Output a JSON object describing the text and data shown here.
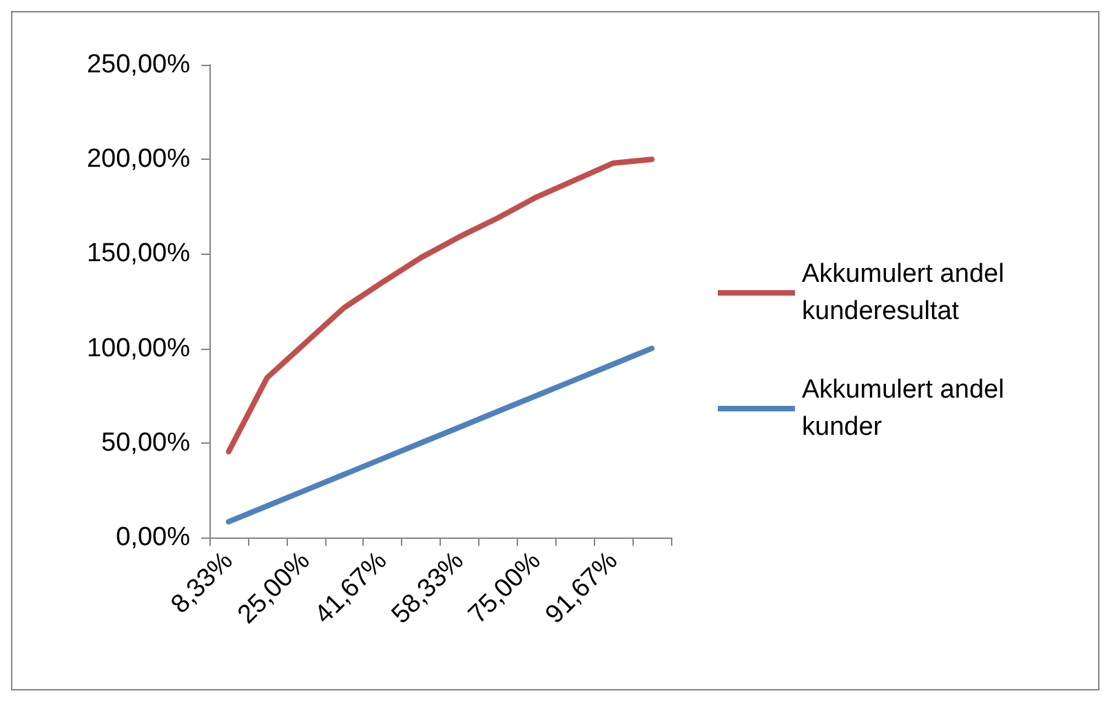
{
  "chart_data": {
    "type": "line",
    "categories": [
      "8,33%",
      null,
      "25,00%",
      null,
      "41,67%",
      null,
      "58,33%",
      null,
      "75,00%",
      null,
      "91,67%",
      null
    ],
    "series": [
      {
        "name": "Akkumulert andel kunderesultat",
        "color": "#c0504d",
        "values": [
          45.4,
          84.5,
          103,
          121.5,
          135,
          148,
          159,
          169,
          180,
          189,
          198,
          200
        ]
      },
      {
        "name": "Akkumulert andel kunder",
        "color": "#4f81bd",
        "values": [
          8.33,
          16.67,
          25,
          33.33,
          41.67,
          50,
          58.33,
          66.67,
          75,
          83.33,
          91.67,
          100
        ]
      }
    ],
    "ylim": [
      0,
      250
    ],
    "yticks": [
      {
        "value": 0,
        "label": "0,00%"
      },
      {
        "value": 50,
        "label": "50,00%"
      },
      {
        "value": 100,
        "label": "100,00%"
      },
      {
        "value": 150,
        "label": "150,00%"
      },
      {
        "value": 200,
        "label": "200,00%"
      },
      {
        "value": 250,
        "label": "250,00%"
      }
    ],
    "grid": false,
    "legend": "right",
    "marker": "none",
    "line_style": "solid"
  }
}
